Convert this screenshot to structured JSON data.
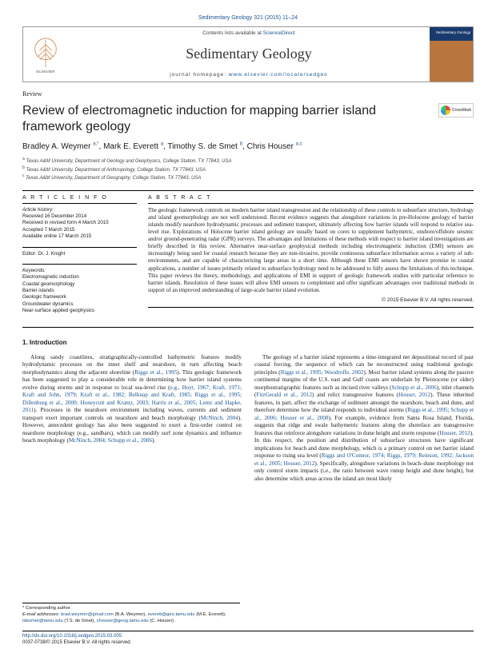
{
  "header": {
    "citation": "Sedimentary Geology 321 (2015) 11–24",
    "contents_text": "Contents lists available at ",
    "contents_link": "ScienceDirect",
    "journal_title": "Sedimentary Geology",
    "homepage_label": "journal homepage: ",
    "homepage_url": "www.elsevier.com/locate/sedgeo",
    "cover_label": "Sedimentary Geology"
  },
  "article": {
    "type": "Review",
    "title": "Review of electromagnetic induction for mapping barrier island framework geology",
    "crossmark": "CrossMark",
    "authors_html": "Bradley A. Weymer <sup>a,*</sup>, Mark E. Everett <sup>a</sup>, Timothy S. de Smet <sup>b</sup>, Chris Houser <sup>a,c</sup>",
    "affiliations": {
      "a": "Texas A&M University, Department of Geology and Geophysics, College Station, TX 77843, USA",
      "b": "Texas A&M University, Department of Anthropology, College Station, TX 77843, USA",
      "c": "Texas A&M University, Department of Geography, College Station, TX 77843, USA"
    }
  },
  "info": {
    "head": "A R T I C L E   I N F O",
    "history_head": "Article history:",
    "history": [
      "Received 16 December 2014",
      "Received in revised form 4 March 2015",
      "Accepted 7 March 2015",
      "Available online 17 March 2015"
    ],
    "editor": "Editor: Dr. J. Knight",
    "keywords_head": "Keywords:",
    "keywords": [
      "Electromagnetic induction",
      "Coastal geomorphology",
      "Barrier islands",
      "Geologic framework",
      "Groundwater dynamics",
      "Near-surface applied geophysics"
    ]
  },
  "abstract": {
    "head": "A B S T R A C T",
    "text": "The geologic framework controls on modern barrier island transgression and the relationship of these controls to subsurface structure, hydrology and island geomorphology are not well understood. Recent evidence suggests that alongshore variations in pre-Holocene geology of barrier islands modify nearshore hydrodynamic processes and sediment transport, ultimately affecting how barrier islands will respond to relative sea-level rise. Explorations of Holocene barrier island geology are usually based on cores to supplement bathymetric, onshore/offshore seismic and/or ground-penetrating radar (GPR) surveys. The advantages and limitations of these methods with respect to barrier island investigations are briefly described in this review. Alternative near-surface geophysical methods including electromagnetic induction (EMI) sensors are increasingly being used for coastal research because they are non-invasive, provide continuous subsurface information across a variety of sub-environments, and are capable of characterizing large areas in a short time. Although these EMI sensors have shown promise in coastal applications, a number of issues primarily related to subsurface hydrology need to be addressed to fully assess the limitations of this technique. This paper reviews the theory, methodology, and applications of EMI in support of geologic framework studies with particular reference to barrier islands. Resolution of these issues will allow EMI sensors to complement and offer significant advantages over traditional methods in support of an improved understanding of large-scale barrier island evolution.",
    "copyright": "© 2015 Elsevier B.V. All rights reserved."
  },
  "body": {
    "intro_head": "1. Introduction",
    "col1": "Along sandy coastlines, stratigraphically-controlled bathymetric features modify hydrodynamic processes on the inner shelf and nearshore, in turn affecting beach morphodynamics along the adjacent shoreline (Riggs et al., 1995). This geologic framework has been suggested to play a considerable role in determining how barrier island systems evolve during storms and in response to local sea-level rise (e.g., Hoyt, 1967; Kraft, 1971; Kraft and John, 1979; Kraft et al., 1982; Belknap and Kraft, 1985; Riggs et al., 1995; Dillenburg et al., 2000; Honeycutt and Krantz, 2003; Harris et al., 2005; Lentz and Hapke, 2011). Processes in the nearshore environment including waves, currents and sediment transport exert important controls on nearshore and beach morphology (McNinch, 2004). However, antecedent geology has also been suggested to exert a first-order control on nearshore morphology (e.g., sandbars), which can modify surf zone dynamics and influence beach morphology (McNinch, 2004; Schupp et al., 2006).",
    "col2": "The geology of a barrier island represents a time-integrated net depositional record of past coastal forcing, the sequence of which can be reconstructed using traditional geologic principles (Riggs et al., 1995; Woodroffe, 2002). Most barrier island systems along the passive continental margins of the U.S. east and Gulf coasts are underlain by Pleistocene (or older) morphostratigraphic features such as incised river valleys (Schupp et al., 2006), inlet channels (FitzGerald et al., 2012) and relict transgressive features (Houser, 2012). These inherited features, in part, affect the exchange of sediment amongst the nearshore, beach and dune, and therefore determine how the island responds to individual storms (Riggs et al., 1995; Schupp et al., 2006; Houser et al., 2008). For example, evidence from Santa Rosa Island, Florida, suggests that ridge and swale bathymetric features along the shoreface are transgressive features that reinforce alongshore variations in dune height and storm response (Houser, 2012). In this respect, the position and distribution of subsurface structures have significant implications for beach and dune morphology, which is a primary control on net barrier island response to rising sea level (Riggs and O'Connor, 1974; Riggs, 1979; Reinson, 1992; Jackson et al., 2005; Houser, 2012). Specifically, alongshore variations in beach–dune morphology not only control storm impacts (i.e., the ratio between wave runup height and dune height), but also determine which areas across the island are most likely"
  },
  "footer": {
    "corresponding": "* Corresponding author.",
    "email_label": "E-mail addresses: ",
    "emails": "brad.weymer@gmail.com (B.A. Weymer), everett@geo.tamu.edu (M.E. Everett), tdesmet@tamu.edu (T.S. de Smet), chouser@geog.tamu.edu (C. Houser).",
    "doi": "http://dx.doi.org/10.1016/j.sedgeo.2015.03.005",
    "issn": "0037-0738/© 2015 Elsevier B.V. All rights reserved."
  },
  "colors": {
    "link": "#1a5490",
    "text": "#1a1a1a",
    "border": "#999999",
    "cover_top": "#1a3a6e",
    "cover_bottom": "#b8763e"
  }
}
